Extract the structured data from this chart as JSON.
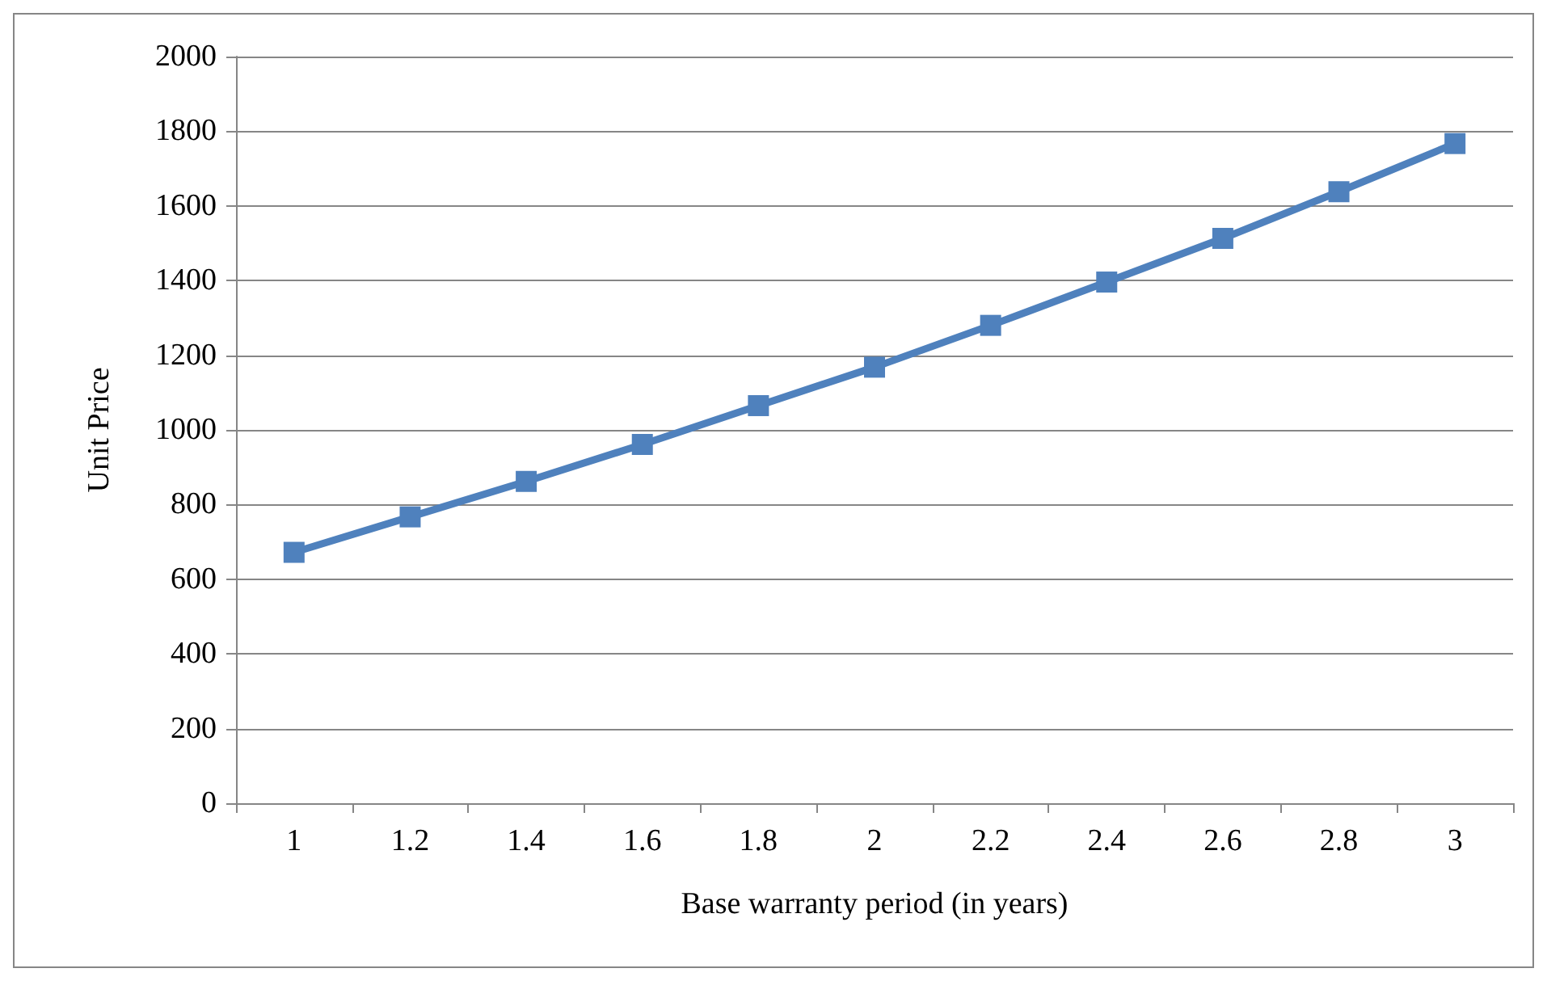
{
  "chart_data": {
    "type": "line",
    "xlabel": "Base warranty period (in years)",
    "ylabel": "Unit Price",
    "categories": [
      "1",
      "1.2",
      "1.4",
      "1.6",
      "1.8",
      "2",
      "2.2",
      "2.4",
      "2.6",
      "2.8",
      "3"
    ],
    "series": [
      {
        "color": "#4f81bd",
        "values": [
          672,
          767,
          862,
          961,
          1065,
          1168,
          1280,
          1396,
          1513,
          1638,
          1767
        ]
      }
    ],
    "ylim": [
      0,
      2000
    ],
    "yticks": [
      0,
      200,
      400,
      600,
      800,
      1000,
      1200,
      1400,
      1600,
      1800,
      2000
    ],
    "grid": "y",
    "marker": "square",
    "line_style": "solid"
  }
}
